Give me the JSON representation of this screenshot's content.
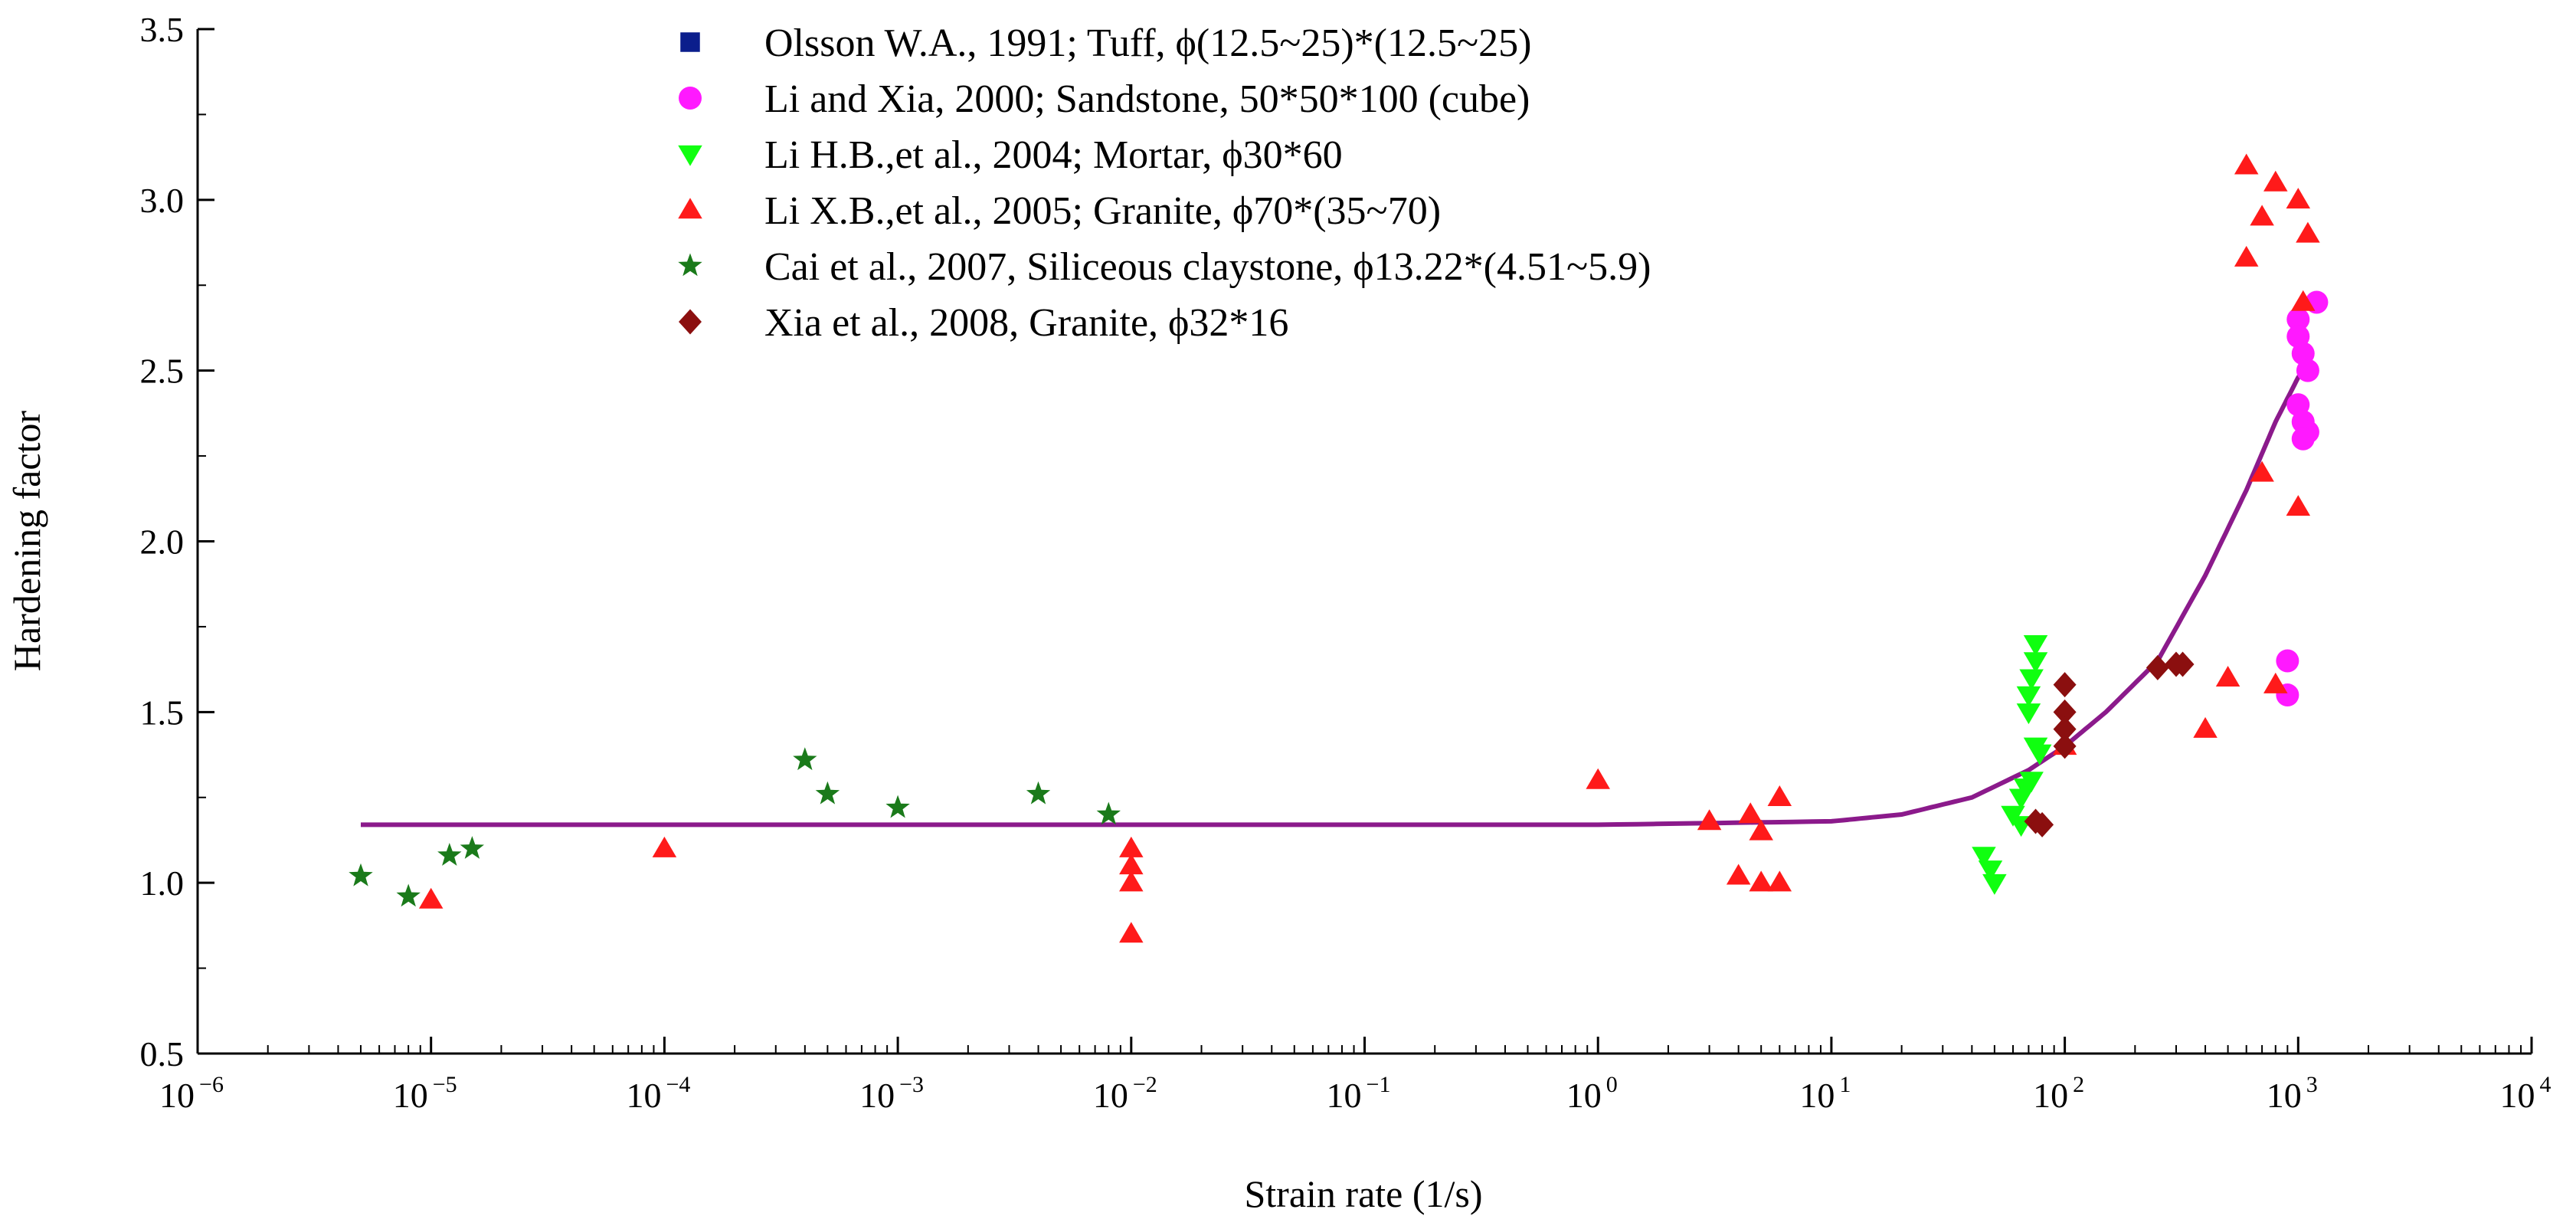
{
  "chart_data": {
    "type": "scatter",
    "xscale": "log",
    "xlabel": "Strain rate (1/s)",
    "ylabel": "Hardening factor",
    "xlim": [
      1e-06,
      10000
    ],
    "ylim": [
      0.5,
      3.5
    ],
    "x_ticks": [
      {
        "base": "10",
        "exp": "−6",
        "value": 1e-06
      },
      {
        "base": "10",
        "exp": "−5",
        "value": 1e-05
      },
      {
        "base": "10",
        "exp": "−4",
        "value": 0.0001
      },
      {
        "base": "10",
        "exp": "−3",
        "value": 0.001
      },
      {
        "base": "10",
        "exp": "−2",
        "value": 0.01
      },
      {
        "base": "10",
        "exp": "−1",
        "value": 0.1
      },
      {
        "base": "10",
        "exp": "0",
        "value": 1
      },
      {
        "base": "10",
        "exp": "1",
        "value": 10
      },
      {
        "base": "10",
        "exp": "2",
        "value": 100
      },
      {
        "base": "10",
        "exp": "3",
        "value": 1000
      },
      {
        "base": "10",
        "exp": "4",
        "value": 10000
      }
    ],
    "y_ticks": [
      "0.5",
      "1.0",
      "1.5",
      "2.0",
      "2.5",
      "3.0",
      "3.5"
    ],
    "legend_position": "top-center",
    "series": [
      {
        "name": "Olsson W.A., 1991; Tuff, ϕ(12.5~25)*(12.5~25)",
        "marker": "square",
        "color": "#0b1e8c",
        "points": []
      },
      {
        "name": "Li and Xia, 2000; Sandstone, 50*50*100 (cube)",
        "marker": "circle",
        "color": "#ff19ff",
        "points": [
          [
            900,
            1.65
          ],
          [
            900,
            1.55
          ],
          [
            1000,
            2.65
          ],
          [
            1000,
            2.6
          ],
          [
            1050,
            2.55
          ],
          [
            1100,
            2.5
          ],
          [
            1000,
            2.4
          ],
          [
            1050,
            2.35
          ],
          [
            1100,
            2.32
          ],
          [
            1050,
            2.3
          ],
          [
            1200,
            2.7
          ]
        ]
      },
      {
        "name": "Li H.B.,et al., 2004; Mortar, ϕ30*60",
        "marker": "triangle-down",
        "color": "#10ff10",
        "points": [
          [
            45,
            1.08
          ],
          [
            48,
            1.04
          ],
          [
            50,
            1.0
          ],
          [
            60,
            1.2
          ],
          [
            65,
            1.17
          ],
          [
            65,
            1.25
          ],
          [
            70,
            1.55
          ],
          [
            70,
            1.5
          ],
          [
            72,
            1.6
          ],
          [
            75,
            1.7
          ],
          [
            75,
            1.65
          ],
          [
            75,
            1.4
          ],
          [
            78,
            1.38
          ],
          [
            72,
            1.3
          ],
          [
            68,
            1.28
          ]
        ]
      },
      {
        "name": "Li X.B.,et al., 2005; Granite, ϕ70*(35~70)",
        "marker": "triangle-up",
        "color": "#ff1a1a",
        "points": [
          [
            1e-05,
            0.95
          ],
          [
            0.0001,
            1.1
          ],
          [
            0.01,
            1.1
          ],
          [
            0.01,
            1.05
          ],
          [
            0.01,
            1.0
          ],
          [
            0.01,
            0.85
          ],
          [
            1,
            1.3
          ],
          [
            3,
            1.18
          ],
          [
            4,
            1.02
          ],
          [
            4.5,
            1.2
          ],
          [
            5,
            1.15
          ],
          [
            5,
            1.0
          ],
          [
            6,
            1.25
          ],
          [
            6,
            1.0
          ],
          [
            100,
            1.4
          ],
          [
            400,
            1.45
          ],
          [
            500,
            1.6
          ],
          [
            800,
            1.58
          ],
          [
            600,
            3.1
          ],
          [
            600,
            2.83
          ],
          [
            700,
            2.95
          ],
          [
            800,
            3.05
          ],
          [
            700,
            2.2
          ],
          [
            1000,
            3.0
          ],
          [
            1100,
            2.9
          ],
          [
            1050,
            2.7
          ],
          [
            1000,
            2.1
          ]
        ]
      },
      {
        "name": "Cai et al., 2007, Siliceous claystone, ϕ13.22*(4.51~5.9)",
        "marker": "star",
        "color": "#1a7a1a",
        "points": [
          [
            5e-06,
            1.02
          ],
          [
            8e-06,
            0.96
          ],
          [
            1.2e-05,
            1.08
          ],
          [
            1.5e-05,
            1.1
          ],
          [
            0.0004,
            1.36
          ],
          [
            0.0005,
            1.26
          ],
          [
            0.001,
            1.22
          ],
          [
            0.004,
            1.26
          ],
          [
            0.008,
            1.2
          ]
        ]
      },
      {
        "name": "Xia et al., 2008, Granite, ϕ32*16",
        "marker": "diamond",
        "color": "#8b0f0f",
        "points": [
          [
            75,
            1.18
          ],
          [
            80,
            1.17
          ],
          [
            100,
            1.58
          ],
          [
            100,
            1.5
          ],
          [
            100,
            1.45
          ],
          [
            100,
            1.4
          ],
          [
            250,
            1.63
          ],
          [
            300,
            1.64
          ],
          [
            320,
            1.64
          ]
        ]
      }
    ],
    "fit_curve": {
      "color": "#8b1a8b",
      "points": [
        [
          5e-06,
          1.17
        ],
        [
          1,
          1.17
        ],
        [
          10,
          1.18
        ],
        [
          20,
          1.2
        ],
        [
          40,
          1.25
        ],
        [
          70,
          1.33
        ],
        [
          100,
          1.4
        ],
        [
          150,
          1.5
        ],
        [
          250,
          1.65
        ],
        [
          400,
          1.9
        ],
        [
          600,
          2.15
        ],
        [
          800,
          2.35
        ],
        [
          1000,
          2.48
        ],
        [
          1100,
          2.52
        ]
      ]
    }
  }
}
